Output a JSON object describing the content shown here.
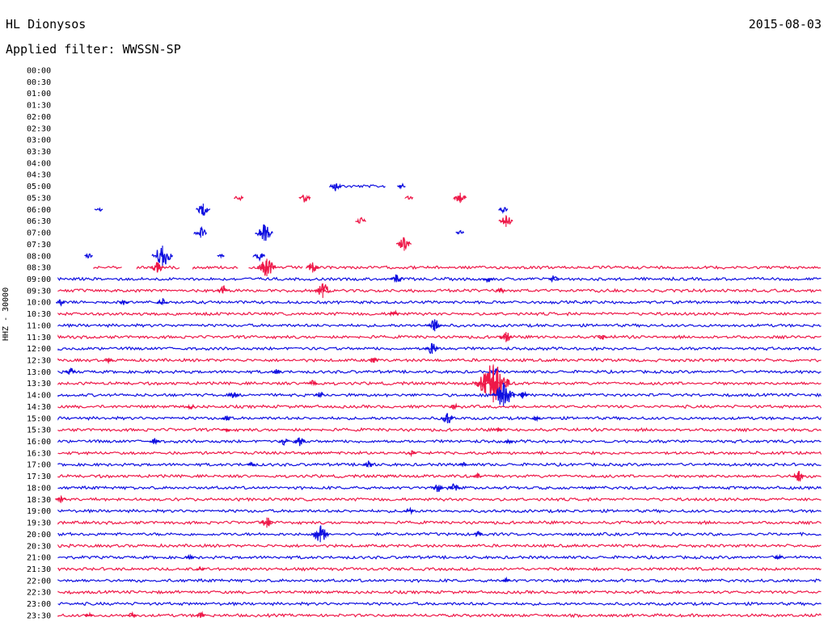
{
  "header": {
    "station": "HL Dionysos",
    "date": "2015-08-03",
    "filter": "Applied filter: WWSSN-SP",
    "channel_label": "HHZ - 30000"
  },
  "colors": {
    "trace_a": "#1010e0",
    "trace_b": "#ee1848"
  },
  "chart_data": {
    "type": "line",
    "title": "HL Dionysos",
    "xlabel": "",
    "ylabel": "HHZ - 30000",
    "row_labels": [
      "00:00",
      "00:30",
      "01:00",
      "01:30",
      "02:00",
      "02:30",
      "03:00",
      "03:30",
      "04:00",
      "04:30",
      "05:00",
      "05:30",
      "06:00",
      "06:30",
      "07:00",
      "07:30",
      "08:00",
      "08:30",
      "09:00",
      "09:30",
      "10:00",
      "10:30",
      "11:00",
      "11:30",
      "12:00",
      "12:30",
      "13:00",
      "13:30",
      "14:00",
      "14:30",
      "15:00",
      "15:30",
      "16:00",
      "16:30",
      "17:00",
      "17:30",
      "18:00",
      "18:30",
      "19:00",
      "19:30",
      "20:00",
      "20:30",
      "21:00",
      "21:30",
      "22:00",
      "22:30",
      "23:00",
      "23:30"
    ],
    "row_colors": [
      "blue",
      "red",
      "blue",
      "red",
      "blue",
      "red",
      "blue",
      "red",
      "blue",
      "red",
      "blue",
      "red",
      "blue",
      "red",
      "blue",
      "red",
      "blue",
      "red",
      "blue",
      "red",
      "blue",
      "red",
      "blue",
      "red",
      "blue",
      "red",
      "blue",
      "red",
      "blue",
      "red",
      "blue",
      "red",
      "blue",
      "red",
      "blue",
      "red",
      "blue",
      "red",
      "blue",
      "red",
      "blue",
      "red",
      "blue",
      "red",
      "blue",
      "red",
      "blue",
      "red"
    ],
    "x_range_minutes": [
      0,
      30
    ],
    "series": [
      {
        "row": "05:00",
        "segments": [
          [
            10.9,
            12.9
          ]
        ],
        "events": [
          [
            10.9,
            6
          ],
          [
            13.5,
            3
          ]
        ]
      },
      {
        "row": "05:30",
        "segments": [],
        "events": [
          [
            7.1,
            4
          ],
          [
            9.7,
            6
          ],
          [
            13.8,
            3
          ],
          [
            15.8,
            7
          ]
        ]
      },
      {
        "row": "06:00",
        "segments": [],
        "events": [
          [
            1.6,
            3
          ],
          [
            5.7,
            8
          ],
          [
            17.5,
            4
          ]
        ]
      },
      {
        "row": "06:30",
        "segments": [],
        "events": [
          [
            11.9,
            5
          ],
          [
            17.6,
            8
          ]
        ]
      },
      {
        "row": "07:00",
        "segments": [],
        "events": [
          [
            5.6,
            7
          ],
          [
            8.1,
            11
          ],
          [
            15.8,
            3
          ]
        ]
      },
      {
        "row": "07:30",
        "segments": [],
        "events": [
          [
            13.6,
            9
          ]
        ]
      },
      {
        "row": "08:00",
        "segments": [],
        "events": [
          [
            1.2,
            3
          ],
          [
            4.1,
            14
          ],
          [
            6.4,
            2
          ],
          [
            7.9,
            6
          ]
        ]
      },
      {
        "row": "08:30",
        "segments": [
          [
            1.4,
            2.5
          ],
          [
            3.1,
            4.8
          ],
          [
            5.3,
            7.1
          ],
          [
            7.5,
            9.6
          ],
          [
            9.9,
            30
          ]
        ],
        "events": [
          [
            3.9,
            7
          ],
          [
            8.2,
            12
          ],
          [
            10.0,
            7
          ]
        ]
      },
      {
        "row": "09:00",
        "segments": [
          [
            0,
            30
          ]
        ],
        "events": [
          [
            13.3,
            6
          ],
          [
            16.9,
            4
          ],
          [
            19.5,
            5
          ]
        ]
      },
      {
        "row": "09:30",
        "segments": [
          [
            0,
            30
          ]
        ],
        "events": [
          [
            6.5,
            6
          ],
          [
            10.4,
            10
          ],
          [
            17.4,
            4
          ]
        ]
      },
      {
        "row": "10:00",
        "segments": [
          [
            0,
            30
          ]
        ],
        "events": [
          [
            0.1,
            4
          ],
          [
            2.6,
            4
          ],
          [
            4.1,
            5
          ]
        ]
      },
      {
        "row": "10:30",
        "segments": [
          [
            0,
            30
          ]
        ],
        "events": [
          [
            13.2,
            5
          ]
        ]
      },
      {
        "row": "11:00",
        "segments": [
          [
            0,
            30
          ]
        ],
        "events": [
          [
            14.8,
            8
          ]
        ]
      },
      {
        "row": "11:30",
        "segments": [
          [
            0,
            30
          ]
        ],
        "events": [
          [
            17.6,
            7
          ],
          [
            21.4,
            4
          ]
        ]
      },
      {
        "row": "12:00",
        "segments": [
          [
            0,
            30
          ]
        ],
        "events": [
          [
            14.7,
            7
          ]
        ]
      },
      {
        "row": "12:30",
        "segments": [
          [
            0,
            30
          ]
        ],
        "events": [
          [
            2.0,
            3
          ],
          [
            12.4,
            4
          ]
        ]
      },
      {
        "row": "13:00",
        "segments": [
          [
            0,
            30
          ]
        ],
        "events": [
          [
            0.5,
            5
          ],
          [
            8.6,
            4
          ],
          [
            17.2,
            4
          ]
        ]
      },
      {
        "row": "13:30",
        "segments": [
          [
            0,
            30
          ]
        ],
        "events": [
          [
            10.0,
            4
          ],
          [
            16.8,
            14
          ],
          [
            17.1,
            26
          ]
        ]
      },
      {
        "row": "14:00",
        "segments": [
          [
            0,
            30
          ]
        ],
        "events": [
          [
            6.9,
            5
          ],
          [
            10.3,
            4
          ],
          [
            17.5,
            16
          ],
          [
            18.3,
            5
          ]
        ]
      },
      {
        "row": "14:30",
        "segments": [
          [
            0,
            30
          ]
        ],
        "events": [
          [
            5.2,
            4
          ],
          [
            15.6,
            4
          ]
        ]
      },
      {
        "row": "15:00",
        "segments": [
          [
            0,
            30
          ]
        ],
        "events": [
          [
            6.6,
            4
          ],
          [
            15.3,
            7
          ],
          [
            18.8,
            3
          ]
        ]
      },
      {
        "row": "15:30",
        "segments": [
          [
            0,
            30
          ]
        ],
        "events": [
          [
            6.6,
            3
          ],
          [
            17.3,
            3
          ]
        ]
      },
      {
        "row": "16:00",
        "segments": [
          [
            0,
            30
          ]
        ],
        "events": [
          [
            3.8,
            4
          ],
          [
            8.9,
            5
          ],
          [
            9.5,
            6
          ],
          [
            17.7,
            3
          ]
        ]
      },
      {
        "row": "16:30",
        "segments": [
          [
            0,
            30
          ]
        ],
        "events": [
          [
            13.9,
            3
          ]
        ]
      },
      {
        "row": "17:00",
        "segments": [
          [
            0,
            30
          ]
        ],
        "events": [
          [
            7.6,
            3
          ],
          [
            12.2,
            5
          ],
          [
            15.9,
            3
          ]
        ]
      },
      {
        "row": "17:30",
        "segments": [
          [
            0,
            30
          ]
        ],
        "events": [
          [
            29.1,
            7
          ],
          [
            16.5,
            3
          ]
        ]
      },
      {
        "row": "18:00",
        "segments": [
          [
            0,
            30
          ]
        ],
        "events": [
          [
            14.9,
            6
          ],
          [
            15.6,
            6
          ]
        ]
      },
      {
        "row": "18:30",
        "segments": [
          [
            0,
            30
          ]
        ],
        "events": [
          [
            0.1,
            5
          ]
        ]
      },
      {
        "row": "19:00",
        "segments": [
          [
            0,
            30
          ]
        ],
        "events": [
          [
            13.8,
            4
          ]
        ]
      },
      {
        "row": "19:30",
        "segments": [
          [
            0,
            30
          ]
        ],
        "events": [
          [
            8.2,
            7
          ]
        ]
      },
      {
        "row": "20:00",
        "segments": [
          [
            0,
            30
          ]
        ],
        "events": [
          [
            10.3,
            11
          ],
          [
            16.5,
            4
          ]
        ]
      },
      {
        "row": "20:30",
        "segments": [
          [
            0,
            30
          ]
        ],
        "events": []
      },
      {
        "row": "21:00",
        "segments": [
          [
            0,
            30
          ]
        ],
        "events": [
          [
            5.2,
            3
          ],
          [
            28.3,
            3
          ]
        ]
      },
      {
        "row": "21:30",
        "segments": [
          [
            0,
            30
          ]
        ],
        "events": [
          [
            5.6,
            3
          ]
        ]
      },
      {
        "row": "22:00",
        "segments": [
          [
            0,
            30
          ]
        ],
        "events": [
          [
            17.6,
            3
          ]
        ]
      },
      {
        "row": "22:30",
        "segments": [
          [
            0,
            30
          ]
        ],
        "events": []
      },
      {
        "row": "23:00",
        "segments": [
          [
            0,
            30
          ]
        ],
        "events": []
      },
      {
        "row": "23:30",
        "segments": [
          [
            0,
            30
          ]
        ],
        "events": [
          [
            1.2,
            3
          ],
          [
            2.9,
            4
          ],
          [
            5.6,
            4
          ]
        ]
      }
    ]
  }
}
